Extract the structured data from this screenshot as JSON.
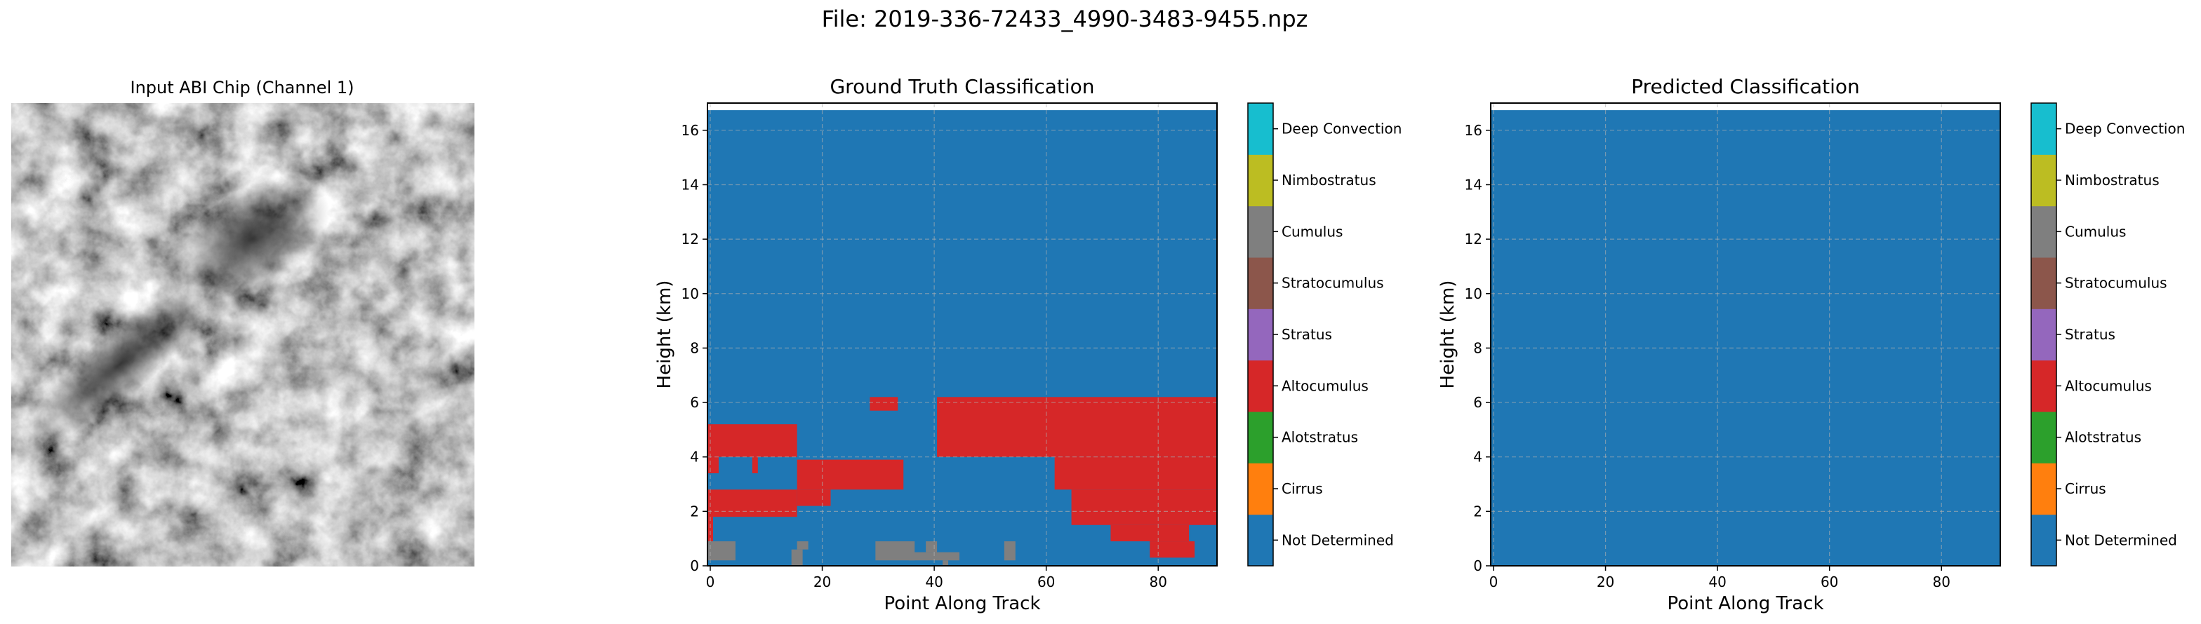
{
  "figure": {
    "suptitle": "File: 2019-336-72433_4990-3483-9455.npz"
  },
  "chip": {
    "title": "Input ABI Chip (Channel 1)"
  },
  "classes": [
    {
      "name": "Not Determined",
      "color": "#1f77b4"
    },
    {
      "name": "Cirrus",
      "color": "#ff7f0e"
    },
    {
      "name": "Alotstratus",
      "color": "#2ca02c"
    },
    {
      "name": "Altocumulus",
      "color": "#d62728"
    },
    {
      "name": "Stratus",
      "color": "#9467bd"
    },
    {
      "name": "Stratocumulus",
      "color": "#8c564b"
    },
    {
      "name": "Cumulus",
      "color": "#7f7f7f"
    },
    {
      "name": "Nimbostratus",
      "color": "#bcbd22"
    },
    {
      "name": "Deep Convection",
      "color": "#17becf"
    }
  ],
  "chart_data": [
    {
      "type": "heatmap",
      "title": "Ground Truth Classification",
      "xlabel": "Point Along Track",
      "ylabel": "Height (km)",
      "xlim": [
        -0.5,
        90.5
      ],
      "ylim": [
        0,
        17
      ],
      "data_ymax": 16.74,
      "xticks": [
        0,
        20,
        40,
        60,
        80
      ],
      "yticks": [
        0,
        2,
        4,
        6,
        8,
        10,
        12,
        14,
        16
      ],
      "grid": true,
      "background_class": 0,
      "regions": [
        {
          "class": 3,
          "x0": -0.5,
          "x1": 15.5,
          "y0": 4.0,
          "y1": 5.2
        },
        {
          "class": 3,
          "x0": -0.5,
          "x1": 1.5,
          "y0": 3.4,
          "y1": 4.0
        },
        {
          "class": 3,
          "x0": 7.5,
          "x1": 8.5,
          "y0": 3.4,
          "y1": 4.0
        },
        {
          "class": 3,
          "x0": 28.5,
          "x1": 33.5,
          "y0": 5.7,
          "y1": 6.2
        },
        {
          "class": 3,
          "x0": 40.5,
          "x1": 90.5,
          "y0": 4.0,
          "y1": 6.2
        },
        {
          "class": 3,
          "x0": 15.5,
          "x1": 34.5,
          "y0": 2.8,
          "y1": 3.9
        },
        {
          "class": 3,
          "x0": -0.5,
          "x1": 15.5,
          "y0": 1.8,
          "y1": 2.8
        },
        {
          "class": 3,
          "x0": 15.5,
          "x1": 21.5,
          "y0": 2.2,
          "y1": 2.8
        },
        {
          "class": 3,
          "x0": -0.5,
          "x1": 0.5,
          "y0": 0.9,
          "y1": 1.8
        },
        {
          "class": 3,
          "x0": 61.5,
          "x1": 90.5,
          "y0": 2.8,
          "y1": 4.0
        },
        {
          "class": 3,
          "x0": 64.5,
          "x1": 90.5,
          "y0": 1.5,
          "y1": 2.8
        },
        {
          "class": 3,
          "x0": 71.5,
          "x1": 85.5,
          "y0": 0.9,
          "y1": 1.5
        },
        {
          "class": 3,
          "x0": 78.5,
          "x1": 86.5,
          "y0": 0.3,
          "y1": 0.9
        },
        {
          "class": 6,
          "x0": -0.5,
          "x1": 4.5,
          "y0": 0.2,
          "y1": 0.9
        },
        {
          "class": 6,
          "x0": 14.5,
          "x1": 16.5,
          "y0": 0.0,
          "y1": 0.6
        },
        {
          "class": 6,
          "x0": 15.5,
          "x1": 17.5,
          "y0": 0.6,
          "y1": 0.9
        },
        {
          "class": 6,
          "x0": 29.5,
          "x1": 36.5,
          "y0": 0.2,
          "y1": 0.9
        },
        {
          "class": 6,
          "x0": 35.5,
          "x1": 44.5,
          "y0": 0.2,
          "y1": 0.5
        },
        {
          "class": 6,
          "x0": 38.5,
          "x1": 40.5,
          "y0": 0.5,
          "y1": 0.9
        },
        {
          "class": 6,
          "x0": 41.5,
          "x1": 42.5,
          "y0": 0.0,
          "y1": 0.2
        },
        {
          "class": 6,
          "x0": 52.5,
          "x1": 54.5,
          "y0": 0.2,
          "y1": 0.9
        }
      ]
    },
    {
      "type": "heatmap",
      "title": "Predicted Classification",
      "xlabel": "Point Along Track",
      "ylabel": "Height (km)",
      "xlim": [
        -0.5,
        90.5
      ],
      "ylim": [
        0,
        17
      ],
      "data_ymax": 16.74,
      "xticks": [
        0,
        20,
        40,
        60,
        80
      ],
      "yticks": [
        0,
        2,
        4,
        6,
        8,
        10,
        12,
        14,
        16
      ],
      "grid": true,
      "background_class": 0,
      "regions": []
    }
  ]
}
